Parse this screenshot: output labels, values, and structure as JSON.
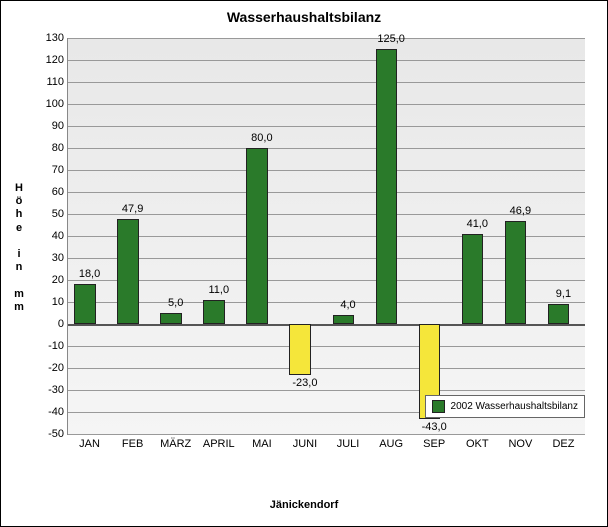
{
  "chart": {
    "type": "bar",
    "title": "Wasserhaushaltsbilanz",
    "xlabel": "Jänickendorf",
    "ylabel": "Höhe in mm",
    "ylim_min": -50,
    "ylim_max": 130,
    "ytick_step": 10,
    "grid_color": "#999999",
    "background_color": "#f0f0f0",
    "positive_color": "#2a7a2a",
    "negative_color": "#f5e63a",
    "legend_label": "2002 Wasserhaushaltsbilanz",
    "categories": [
      "JAN",
      "FEB",
      "MÄRZ",
      "APRIL",
      "MAI",
      "JUNI",
      "JULI",
      "AUG",
      "SEP",
      "OKT",
      "NOV",
      "DEZ"
    ],
    "values": [
      18.0,
      47.9,
      5.0,
      11.0,
      80.0,
      -23.0,
      4.0,
      125.0,
      -43.0,
      41.0,
      46.9,
      9.1
    ],
    "value_labels": [
      "18,0",
      "47,9",
      "5,0",
      "11,0",
      "80,0",
      "-23,0",
      "4,0",
      "125,0",
      "-43,0",
      "41,0",
      "46,9",
      "9,1"
    ]
  }
}
